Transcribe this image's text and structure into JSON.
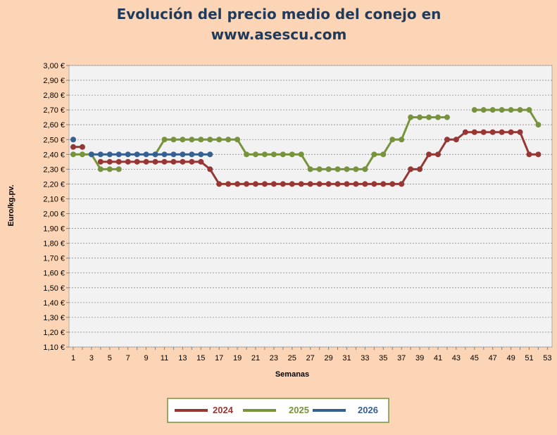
{
  "chart_data": {
    "type": "line",
    "title_lines": [
      "Evolución del precio medio del conejo en",
      "www.asescu.com"
    ],
    "xlabel": "Semanas",
    "ylabel": "Euro/kg.pv.",
    "ylim": [
      1.1,
      3.0
    ],
    "yticks": [
      "1,10 €",
      "1,20 €",
      "1,30 €",
      "1,40 €",
      "1,50 €",
      "1,60 €",
      "1,70 €",
      "1,80 €",
      "1,90 €",
      "2,00 €",
      "2,10 €",
      "2,20 €",
      "2,30 €",
      "2,40 €",
      "2,50 €",
      "2,60 €",
      "2,70 €",
      "2,80 €",
      "2,90 €",
      "3,00 €"
    ],
    "xlim": [
      1,
      53
    ],
    "xticks": [
      1,
      3,
      5,
      7,
      9,
      11,
      13,
      15,
      17,
      19,
      21,
      23,
      25,
      27,
      29,
      31,
      33,
      35,
      37,
      39,
      41,
      43,
      45,
      47,
      49,
      51,
      53
    ],
    "grid": "horizontal dotted",
    "legend_position": "bottom",
    "series": [
      {
        "name": "2024",
        "color": "#953735",
        "points": [
          [
            1,
            2.45
          ],
          [
            2,
            2.45
          ],
          [
            4,
            2.35
          ],
          [
            5,
            2.35
          ],
          [
            6,
            2.35
          ],
          [
            7,
            2.35
          ],
          [
            8,
            2.35
          ],
          [
            9,
            2.35
          ],
          [
            10,
            2.35
          ],
          [
            11,
            2.35
          ],
          [
            12,
            2.35
          ],
          [
            13,
            2.35
          ],
          [
            14,
            2.35
          ],
          [
            15,
            2.35
          ],
          [
            16,
            2.3
          ],
          [
            17,
            2.2
          ],
          [
            18,
            2.2
          ],
          [
            19,
            2.2
          ],
          [
            20,
            2.2
          ],
          [
            21,
            2.2
          ],
          [
            22,
            2.2
          ],
          [
            23,
            2.2
          ],
          [
            24,
            2.2
          ],
          [
            25,
            2.2
          ],
          [
            26,
            2.2
          ],
          [
            27,
            2.2
          ],
          [
            28,
            2.2
          ],
          [
            29,
            2.2
          ],
          [
            30,
            2.2
          ],
          [
            31,
            2.2
          ],
          [
            32,
            2.2
          ],
          [
            33,
            2.2
          ],
          [
            34,
            2.2
          ],
          [
            35,
            2.2
          ],
          [
            36,
            2.2
          ],
          [
            37,
            2.2
          ],
          [
            38,
            2.3
          ],
          [
            39,
            2.3
          ],
          [
            40,
            2.4
          ],
          [
            41,
            2.4
          ],
          [
            42,
            2.5
          ],
          [
            43,
            2.5
          ],
          [
            44,
            2.55
          ],
          [
            45,
            2.55
          ],
          [
            46,
            2.55
          ],
          [
            47,
            2.55
          ],
          [
            48,
            2.55
          ],
          [
            49,
            2.55
          ],
          [
            50,
            2.55
          ],
          [
            51,
            2.4
          ],
          [
            52,
            2.4
          ]
        ]
      },
      {
        "name": "2025",
        "color": "#77933c",
        "segments": [
          [
            [
              1,
              2.4
            ],
            [
              2,
              2.4
            ],
            [
              3,
              2.4
            ],
            [
              4,
              2.3
            ],
            [
              5,
              2.3
            ],
            [
              6,
              2.3
            ]
          ],
          [
            [
              10,
              2.4
            ],
            [
              11,
              2.5
            ],
            [
              12,
              2.5
            ],
            [
              13,
              2.5
            ],
            [
              14,
              2.5
            ],
            [
              15,
              2.5
            ],
            [
              16,
              2.5
            ],
            [
              17,
              2.5
            ],
            [
              18,
              2.5
            ],
            [
              19,
              2.5
            ],
            [
              20,
              2.4
            ],
            [
              21,
              2.4
            ],
            [
              22,
              2.4
            ],
            [
              23,
              2.4
            ],
            [
              24,
              2.4
            ],
            [
              25,
              2.4
            ],
            [
              26,
              2.4
            ],
            [
              27,
              2.3
            ],
            [
              28,
              2.3
            ],
            [
              29,
              2.3
            ],
            [
              30,
              2.3
            ],
            [
              31,
              2.3
            ],
            [
              32,
              2.3
            ],
            [
              33,
              2.3
            ],
            [
              34,
              2.4
            ],
            [
              35,
              2.4
            ],
            [
              36,
              2.5
            ],
            [
              37,
              2.5
            ],
            [
              38,
              2.65
            ],
            [
              39,
              2.65
            ],
            [
              40,
              2.65
            ],
            [
              41,
              2.65
            ],
            [
              42,
              2.65
            ]
          ],
          [
            [
              45,
              2.7
            ],
            [
              46,
              2.7
            ],
            [
              47,
              2.7
            ],
            [
              48,
              2.7
            ],
            [
              49,
              2.7
            ],
            [
              50,
              2.7
            ],
            [
              51,
              2.7
            ],
            [
              52,
              2.6
            ]
          ]
        ]
      },
      {
        "name": "2026",
        "color": "#376092",
        "points": [
          [
            1,
            2.5
          ],
          [
            3,
            2.4
          ],
          [
            4,
            2.4
          ],
          [
            5,
            2.4
          ],
          [
            6,
            2.4
          ],
          [
            7,
            2.4
          ],
          [
            8,
            2.4
          ],
          [
            9,
            2.4
          ],
          [
            10,
            2.4
          ],
          [
            11,
            2.4
          ],
          [
            12,
            2.4
          ],
          [
            13,
            2.4
          ],
          [
            14,
            2.4
          ],
          [
            15,
            2.4
          ],
          [
            16,
            2.4
          ]
        ]
      }
    ]
  }
}
